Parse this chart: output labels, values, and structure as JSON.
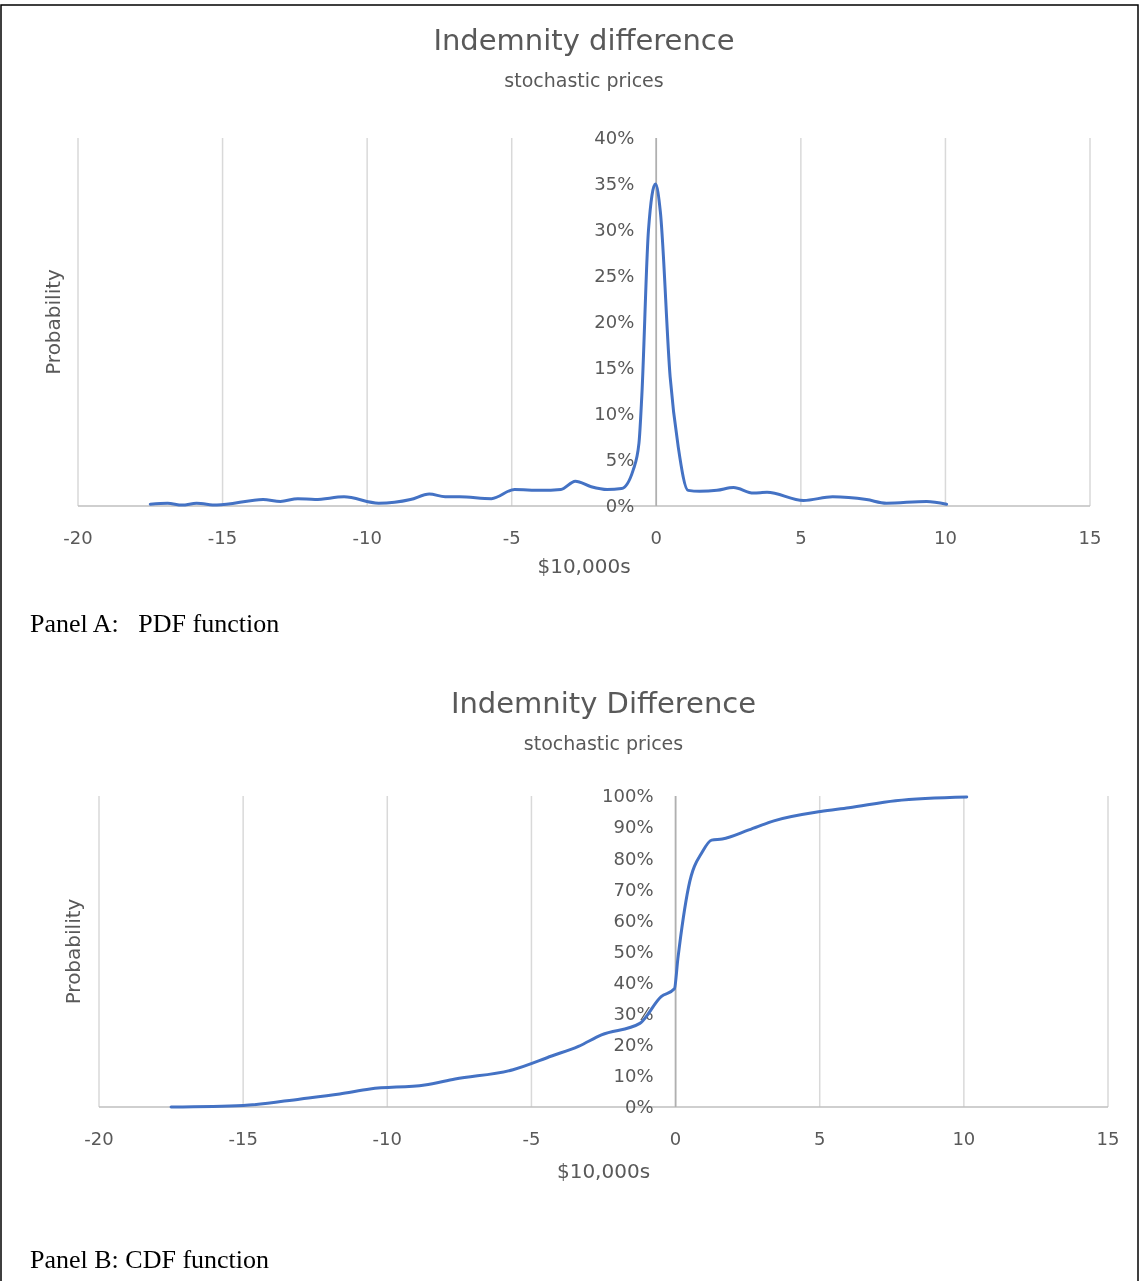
{
  "chart_data": [
    {
      "type": "line",
      "title": "Indemnity difference",
      "subtitle": "stochastic prices",
      "xlabel": "$10,000s",
      "ylabel": "Probability",
      "annotations": [
        "Panel A:   PDF function"
      ],
      "xlim": [
        -20,
        15
      ],
      "xticks": [
        -20,
        -15,
        -10,
        -5,
        0,
        5,
        10,
        15
      ],
      "ylim": [
        0,
        40
      ],
      "yticks": [
        {
          "value": 0,
          "label": "0%"
        },
        {
          "value": 5,
          "label": "5%"
        },
        {
          "value": 10,
          "label": "10%"
        },
        {
          "value": 15,
          "label": "15%"
        },
        {
          "value": 20,
          "label": "20%"
        },
        {
          "value": 25,
          "label": "25%"
        },
        {
          "value": 30,
          "label": "30%"
        },
        {
          "value": 35,
          "label": "35%"
        },
        {
          "value": 40,
          "label": "40%"
        }
      ],
      "grid": "x",
      "marker": "none",
      "line_style": "solid",
      "series": [
        {
          "color": "#4472c4",
          "x": [
            -17.5,
            -16.9,
            -16.4,
            -15.9,
            -15.2,
            -13.6,
            -13.0,
            -12.4,
            -11.8,
            -10.8,
            -9.6,
            -8.5,
            -7.85,
            -7.3,
            -6.8,
            -5.7,
            -4.9,
            -4.0,
            -3.3,
            -2.8,
            -2.25,
            -1.7,
            -1.2,
            -0.8,
            -0.6,
            -0.5,
            -0.27,
            -0.03,
            0.14,
            0.48,
            0.76,
            1.1,
            1.5,
            2.1,
            2.67,
            3.36,
            3.83,
            5.09,
            6.1,
            7.27,
            7.96,
            9.35,
            10.04
          ],
          "values": [
            0.2,
            0.3,
            0.1,
            0.3,
            0.1,
            0.7,
            0.5,
            0.8,
            0.7,
            1.0,
            0.3,
            0.7,
            1.3,
            1.0,
            1.0,
            0.8,
            1.8,
            1.7,
            1.8,
            2.7,
            2.1,
            1.8,
            1.9,
            3.9,
            6.8,
            12,
            30,
            35,
            32,
            14,
            6.4,
            1.7,
            1.6,
            1.7,
            2.0,
            1.4,
            1.5,
            0.6,
            1.0,
            0.7,
            0.3,
            0.5,
            0.2
          ]
        }
      ]
    },
    {
      "type": "line",
      "title": "Indemnity Difference",
      "subtitle": "stochastic prices",
      "xlabel": "$10,000s",
      "ylabel": "Probability",
      "annotations": [
        "Panel B: CDF function"
      ],
      "xlim": [
        -20,
        15
      ],
      "xticks": [
        -20,
        -15,
        -10,
        -5,
        0,
        5,
        10,
        15
      ],
      "ylim": [
        0,
        100
      ],
      "yticks": [
        {
          "value": 0,
          "label": "0%"
        },
        {
          "value": 10,
          "label": "10%"
        },
        {
          "value": 20,
          "label": "20%"
        },
        {
          "value": 30,
          "label": "30%"
        },
        {
          "value": 40,
          "label": "40%"
        },
        {
          "value": 50,
          "label": "50%"
        },
        {
          "value": 60,
          "label": "60%"
        },
        {
          "value": 70,
          "label": "70%"
        },
        {
          "value": 80,
          "label": "80%"
        },
        {
          "value": 90,
          "label": "90%"
        },
        {
          "value": 100,
          "label": "100%"
        }
      ],
      "grid": "x",
      "marker": "none",
      "line_style": "solid",
      "series": [
        {
          "color": "#4472c4",
          "x": [
            -17.5,
            -15.0,
            -13.0,
            -11.65,
            -10.6,
            -8.7,
            -7.65,
            -5.64,
            -4.3,
            -3.37,
            -2.57,
            -1.24,
            -0.5,
            -0.04,
            0.08,
            0.45,
            0.94,
            1.25,
            1.62,
            2.54,
            3.41,
            5.03,
            6.01,
            7.63,
            10.1
          ],
          "values": [
            0,
            0.5,
            2.6,
            4.2,
            5.8,
            7.1,
            9.0,
            12.0,
            16.4,
            19.5,
            23.2,
            26.9,
            35.5,
            38,
            47.7,
            70.7,
            82.2,
            85.8,
            86.2,
            89.1,
            92,
            95.0,
            96.2,
            98.5,
            99.7
          ]
        }
      ]
    }
  ]
}
